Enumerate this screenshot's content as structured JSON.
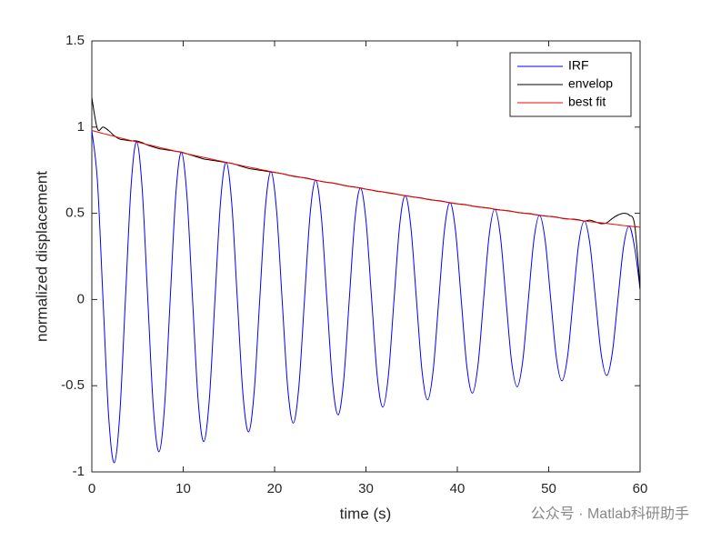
{
  "chart_data": {
    "type": "line",
    "xlabel": "time (s)",
    "ylabel": "normalized displacement",
    "xlim": [
      0,
      60
    ],
    "ylim": [
      -1,
      1.5
    ],
    "xticks": [
      0,
      10,
      20,
      30,
      40,
      50,
      60
    ],
    "yticks": [
      -1,
      -0.5,
      0,
      0.5,
      1,
      1.5
    ],
    "legend": "top-right",
    "watermark": "公众号 · Matlab科研助手",
    "x": [
      0,
      0.6125,
      1.225,
      1.8375,
      2.45,
      3.0625,
      3.675,
      4.2875,
      4.9,
      5.5125,
      6.125,
      6.7375,
      7.35,
      7.9625,
      8.575,
      9.1875,
      9.8,
      10.4125,
      11.025,
      11.6375,
      12.25,
      12.8625,
      13.475,
      14.0875,
      14.7,
      15.3125,
      15.925,
      16.5375,
      17.15,
      17.7625,
      18.375,
      18.9875,
      19.6,
      20.2125,
      20.825,
      21.4375,
      22.05,
      22.6625,
      23.275,
      23.8875,
      24.5,
      25.1125,
      25.725,
      26.3375,
      26.95,
      27.5625,
      28.175,
      28.7875,
      29.4,
      30.0125,
      30.625,
      31.2375,
      31.85,
      32.4625,
      33.075,
      33.6875,
      34.3,
      34.9125,
      35.525,
      36.1375,
      36.75,
      37.3625,
      37.975,
      38.5875,
      39.2,
      39.8125,
      40.425,
      41.0375,
      41.65,
      42.2625,
      42.875,
      43.4875,
      44.1,
      44.7125,
      45.325,
      45.9375,
      46.55,
      47.1625,
      47.775,
      48.3875,
      49,
      49.6125,
      50.225,
      50.8375,
      51.45,
      52.0625,
      52.675,
      53.2875,
      53.9,
      54.5125,
      55.125,
      55.7375,
      56.35,
      56.9625,
      57.575,
      58.1875,
      58.8,
      59.4125,
      60
    ],
    "series": [
      {
        "name": "IRF",
        "color": "#0000ff",
        "values": [
          0.98,
          0.687,
          0,
          -0.675,
          -0.947,
          -0.663,
          0,
          0.652,
          0.914,
          0.641,
          0,
          -0.63,
          -0.883,
          -0.619,
          0,
          0.608,
          0.853,
          0.598,
          0,
          -0.587,
          -0.824,
          -0.577,
          0,
          0.567,
          0.796,
          0.558,
          0,
          -0.548,
          -0.768,
          -0.539,
          0,
          0.529,
          0.742,
          0.52,
          0,
          -0.511,
          -0.717,
          -0.502,
          0,
          0.494,
          0.692,
          0.485,
          0,
          -0.477,
          -0.669,
          -0.469,
          0,
          0.461,
          0.646,
          0.453,
          0,
          -0.445,
          -0.624,
          -0.437,
          0,
          0.43,
          0.603,
          0.422,
          0,
          -0.415,
          -0.582,
          -0.408,
          0,
          0.401,
          0.562,
          0.394,
          0,
          -0.387,
          -0.543,
          -0.38,
          0,
          0.374,
          0.524,
          0.368,
          0,
          -0.361,
          -0.506,
          -0.355,
          0,
          0.349,
          0.489,
          0.343,
          0,
          -0.337,
          -0.472,
          -0.331,
          0,
          0.325,
          0.456,
          0.32,
          0,
          -0.314,
          -0.441,
          -0.309,
          0,
          0.304,
          0.426,
          0.298,
          0.06
        ]
      },
      {
        "name": "envelop",
        "color": "#000000",
        "values": [
          1.17,
          0.99,
          1.0,
          0.98,
          0.95,
          0.93,
          0.925,
          0.92,
          0.92,
          0.91,
          0.895,
          0.885,
          0.875,
          0.87,
          0.865,
          0.86,
          0.855,
          0.845,
          0.835,
          0.825,
          0.815,
          0.81,
          0.805,
          0.8,
          0.795,
          0.79,
          0.78,
          0.77,
          0.76,
          0.755,
          0.75,
          0.745,
          0.74,
          0.735,
          0.73,
          0.722,
          0.715,
          0.71,
          0.706,
          0.7,
          0.692,
          0.685,
          0.68,
          0.676,
          0.67,
          0.662,
          0.656,
          0.652,
          0.647,
          0.64,
          0.634,
          0.628,
          0.624,
          0.619,
          0.614,
          0.607,
          0.602,
          0.597,
          0.593,
          0.588,
          0.581,
          0.576,
          0.573,
          0.568,
          0.561,
          0.556,
          0.553,
          0.549,
          0.542,
          0.537,
          0.534,
          0.53,
          0.523,
          0.519,
          0.516,
          0.512,
          0.505,
          0.501,
          0.499,
          0.494,
          0.488,
          0.484,
          0.482,
          0.478,
          0.471,
          0.467,
          0.466,
          0.462,
          0.455,
          0.46,
          0.45,
          0.44,
          0.445,
          0.47,
          0.49,
          0.5,
          0.49,
          0.43,
          0.06
        ]
      },
      {
        "name": "best fit",
        "color": "#ff0000",
        "values": [
          0.98,
          0.972,
          0.963,
          0.955,
          0.947,
          0.938,
          0.93,
          0.922,
          0.914,
          0.906,
          0.898,
          0.891,
          0.883,
          0.875,
          0.868,
          0.86,
          0.853,
          0.845,
          0.838,
          0.831,
          0.824,
          0.817,
          0.81,
          0.803,
          0.796,
          0.789,
          0.782,
          0.775,
          0.768,
          0.762,
          0.755,
          0.749,
          0.742,
          0.736,
          0.73,
          0.723,
          0.717,
          0.711,
          0.705,
          0.698,
          0.692,
          0.686,
          0.68,
          0.675,
          0.669,
          0.663,
          0.657,
          0.652,
          0.646,
          0.64,
          0.635,
          0.629,
          0.624,
          0.618,
          0.613,
          0.608,
          0.603,
          0.597,
          0.592,
          0.587,
          0.582,
          0.577,
          0.572,
          0.567,
          0.562,
          0.557,
          0.552,
          0.548,
          0.543,
          0.538,
          0.533,
          0.529,
          0.524,
          0.52,
          0.515,
          0.511,
          0.506,
          0.502,
          0.498,
          0.493,
          0.489,
          0.485,
          0.481,
          0.477,
          0.472,
          0.468,
          0.464,
          0.46,
          0.456,
          0.452,
          0.448,
          0.445,
          0.441,
          0.437,
          0.433,
          0.429,
          0.426,
          0.422,
          0.419
        ]
      }
    ]
  }
}
